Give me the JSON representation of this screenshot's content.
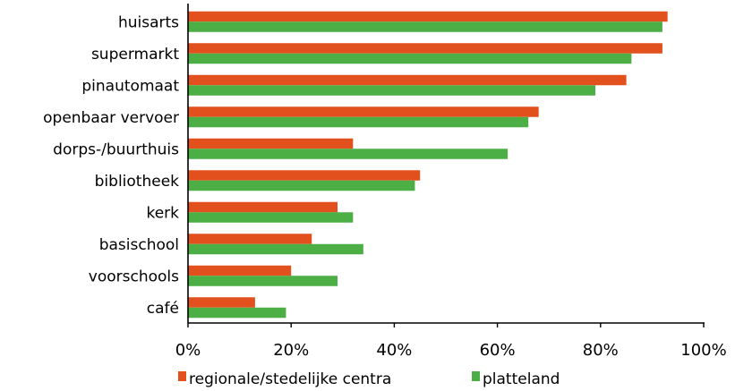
{
  "chart_data": {
    "type": "bar",
    "orientation": "horizontal",
    "categories": [
      "huisarts",
      "supermarkt",
      "pinautomaat",
      "openbaar vervoer",
      "dorps-/buurthuis",
      "bibliotheek",
      "kerk",
      "basischool",
      "voorschools",
      "café"
    ],
    "series": [
      {
        "name": "regionale/stedelijke centra",
        "color": "#E2501E",
        "values": [
          93,
          92,
          85,
          68,
          32,
          45,
          29,
          24,
          20,
          13
        ]
      },
      {
        "name": "platteland",
        "color": "#4CAF45",
        "values": [
          92,
          86,
          79,
          66,
          62,
          44,
          32,
          34,
          29,
          19
        ]
      }
    ],
    "xlim": [
      0,
      100
    ],
    "x_ticks": [
      "0%",
      "20%",
      "40%",
      "60%",
      "80%",
      "100%"
    ],
    "grid": false,
    "legend_position": "bottom"
  }
}
